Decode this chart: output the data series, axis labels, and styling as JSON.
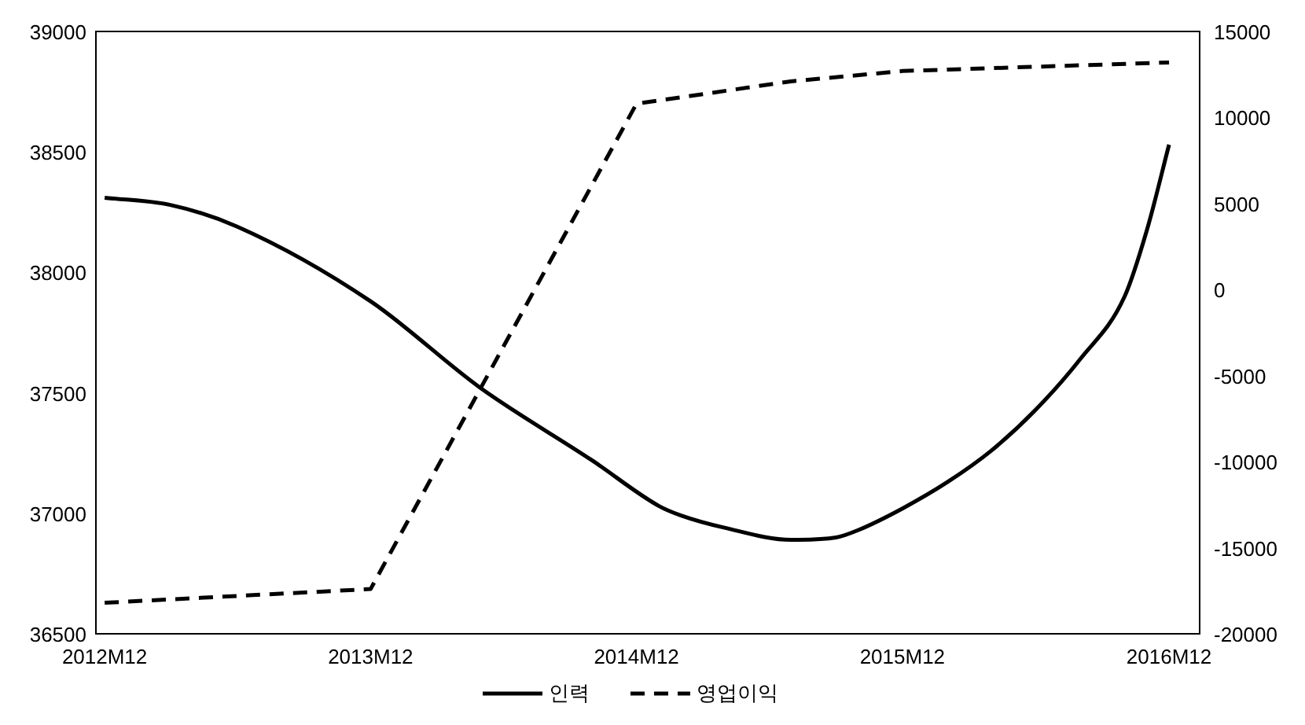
{
  "chart_data": {
    "type": "line",
    "xlim": [
      "2012-11-19",
      "2017-01-12"
    ],
    "xticks": [
      {
        "value": "2012-12",
        "label": "2012M12"
      },
      {
        "value": "2013-12",
        "label": "2013M12"
      },
      {
        "value": "2014-12",
        "label": "2014M12"
      },
      {
        "value": "2015-12",
        "label": "2015M12"
      },
      {
        "value": "2016-12",
        "label": "2016M12"
      }
    ],
    "ylim": [
      36500,
      39000
    ],
    "yticks": [
      36500,
      37000,
      37500,
      38000,
      38500,
      39000
    ],
    "y2lim": [
      -20000,
      15000
    ],
    "y2ticks": [
      -20000,
      -15000,
      -10000,
      -5000,
      0,
      5000,
      10000,
      15000
    ],
    "legend": "bottom",
    "series": [
      {
        "name": "인력",
        "color": "#000000",
        "line_style": "solid",
        "x": [
          "2012-12",
          "2013-03",
          "2013-06",
          "2013-12",
          "2014-05",
          "2014-10",
          "2015-01",
          "2015-02",
          "2015-04",
          "2015-07",
          "2015-09",
          "2015-10",
          "2015-12",
          "2016-02",
          "2016-04",
          "2016-06",
          "2016-08",
          "2016-10",
          "2016-11",
          "2016-12"
        ],
        "values": [
          38310,
          38280,
          38190,
          37880,
          37520,
          37220,
          37030,
          36990,
          36940,
          36890,
          36900,
          36930,
          37020,
          37130,
          37260,
          37430,
          37640,
          37900,
          38180,
          38530
        ]
      },
      {
        "name": "영업이익",
        "color": "#000000",
        "line_style": "dashed",
        "axis": "y2",
        "x": [
          "2012-12",
          "2013-12",
          "2014-12",
          "2015-07",
          "2015-12",
          "2016-12"
        ],
        "values": [
          -18200,
          -17400,
          10800,
          12100,
          12700,
          13200
        ]
      }
    ]
  }
}
